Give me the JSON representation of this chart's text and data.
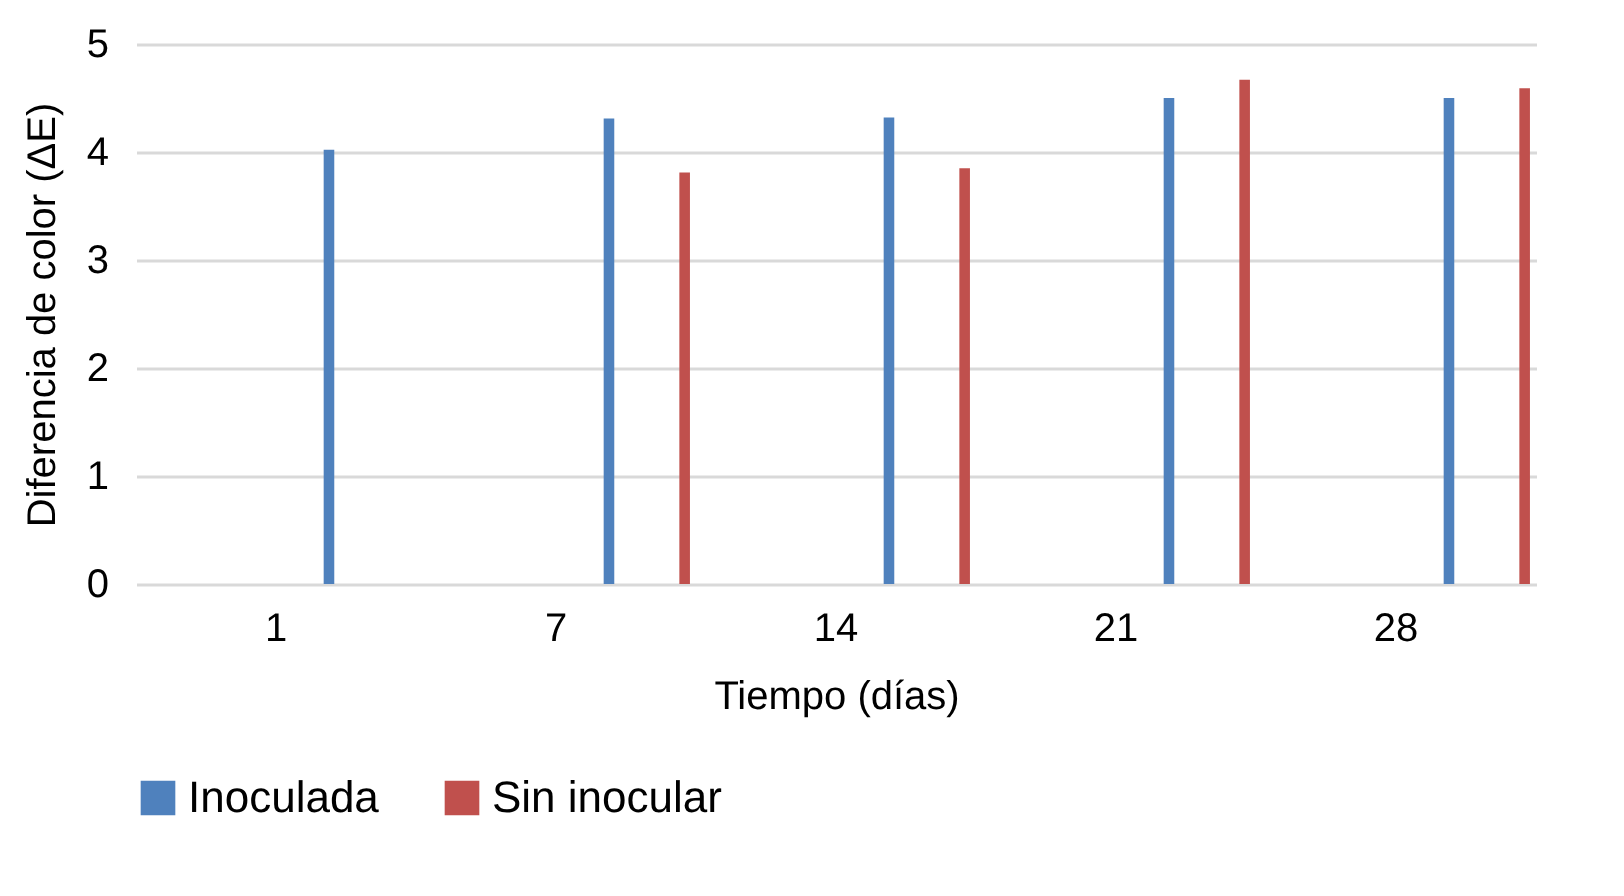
{
  "chart_data": {
    "type": "bar",
    "xlabel": "Tiempo (días)",
    "ylabel": "Diferencia de color (ΔE)",
    "categories": [
      "1",
      "7",
      "14",
      "21",
      "28"
    ],
    "series": [
      {
        "name": "Inoculada",
        "color": "#4f81bd",
        "values": [
          4.02,
          4.31,
          4.32,
          4.5,
          4.5
        ]
      },
      {
        "name": "Sin inocular",
        "color": "#c0504d",
        "values": [
          null,
          3.81,
          3.85,
          4.67,
          4.59
        ]
      }
    ],
    "ylim": [
      0,
      5
    ],
    "yticks": [
      0,
      1,
      2,
      3,
      4,
      5
    ],
    "grid": "y",
    "legend": "bottom"
  }
}
